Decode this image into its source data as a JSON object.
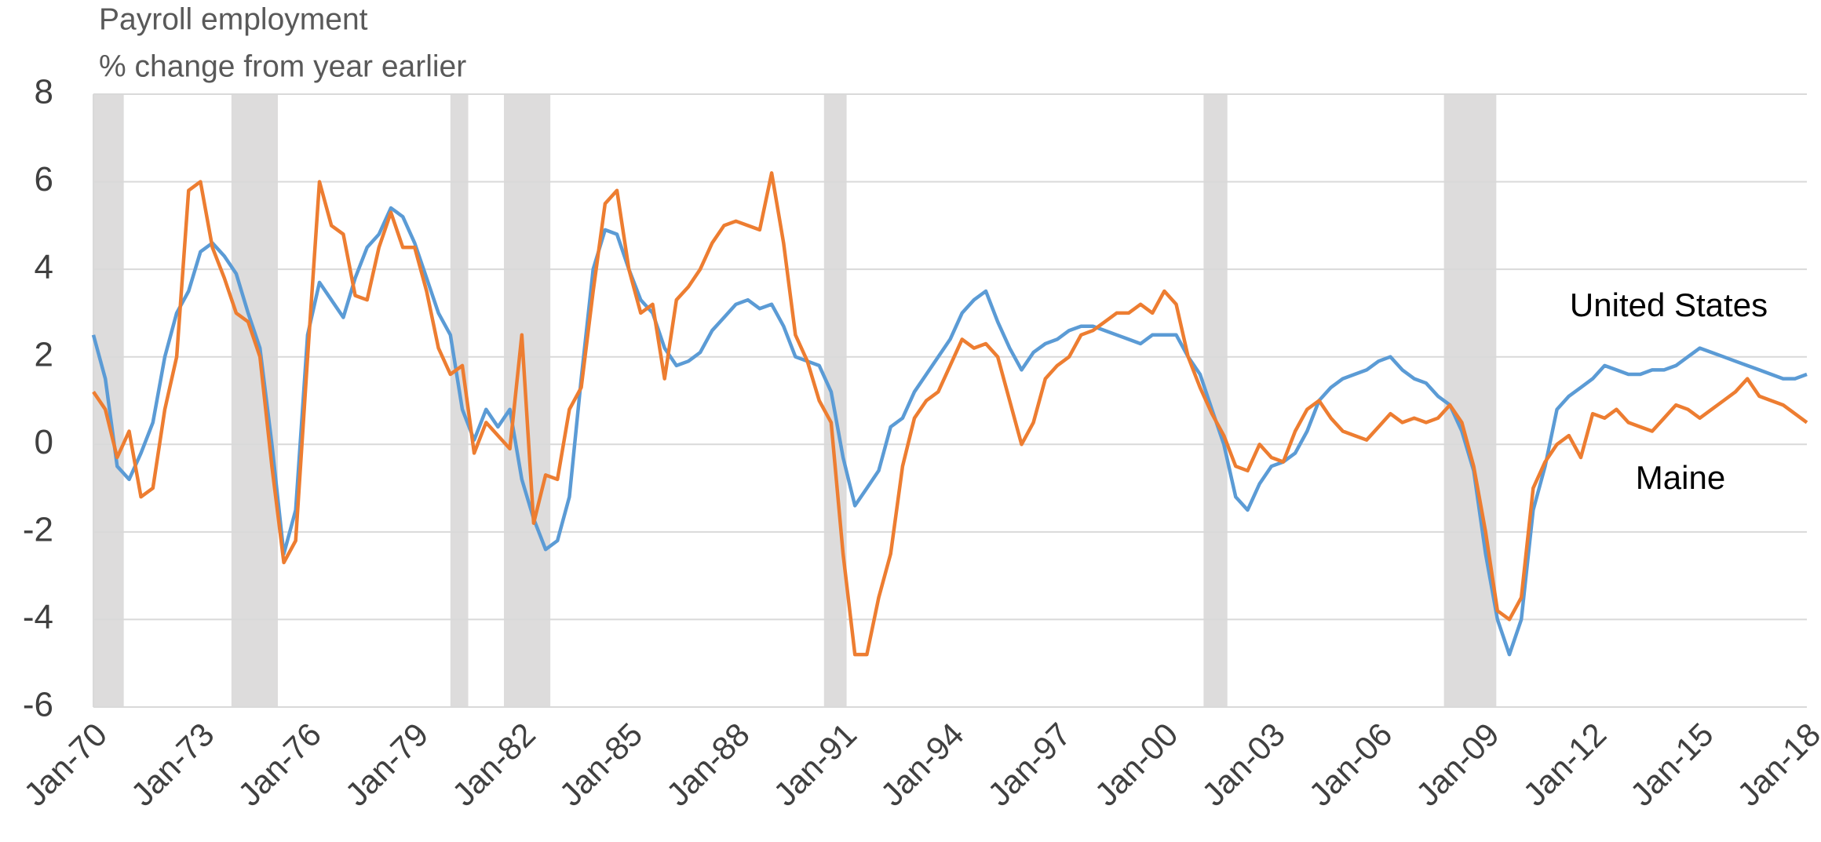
{
  "chart_data": {
    "type": "line",
    "title": "Payroll employment",
    "y_label": "% change from year earlier",
    "categories": [
      "Jan-70",
      null,
      null,
      null,
      null,
      null,
      null,
      null,
      null,
      "Jan-73",
      null,
      null,
      null,
      null,
      null,
      null,
      null,
      null,
      "Jan-76",
      null,
      null,
      null,
      null,
      null,
      null,
      null,
      null,
      "Jan-79",
      null,
      null,
      null,
      null,
      null,
      null,
      null,
      null,
      "Jan-82",
      null,
      null,
      null,
      null,
      null,
      null,
      null,
      null,
      "Jan-85",
      null,
      null,
      null,
      null,
      null,
      null,
      null,
      null,
      "Jan-88",
      null,
      null,
      null,
      null,
      null,
      null,
      null,
      null,
      "Jan-91",
      null,
      null,
      null,
      null,
      null,
      null,
      null,
      null,
      "Jan-94",
      null,
      null,
      null,
      null,
      null,
      null,
      null,
      null,
      "Jan-97",
      null,
      null,
      null,
      null,
      null,
      null,
      null,
      null,
      "Jan-00",
      null,
      null,
      null,
      null,
      null,
      null,
      null,
      null,
      "Jan-03",
      null,
      null,
      null,
      null,
      null,
      null,
      null,
      null,
      "Jan-06",
      null,
      null,
      null,
      null,
      null,
      null,
      null,
      null,
      "Jan-09",
      null,
      null,
      null,
      null,
      null,
      null,
      null,
      null,
      "Jan-12",
      null,
      null,
      null,
      null,
      null,
      null,
      null,
      null,
      "Jan-15",
      null,
      null,
      null,
      null,
      null,
      null,
      null,
      null,
      "Jan-18"
    ],
    "series": [
      {
        "name": "United States",
        "color": "#5b9bd5",
        "values": [
          2.5,
          1.5,
          -0.5,
          -0.8,
          -0.2,
          0.5,
          2.0,
          3.0,
          3.5,
          4.4,
          4.6,
          4.3,
          3.9,
          3.0,
          2.2,
          0.0,
          -2.5,
          -1.5,
          2.5,
          3.7,
          3.3,
          2.9,
          3.8,
          4.5,
          4.8,
          5.4,
          5.2,
          4.6,
          3.8,
          3.0,
          2.5,
          0.8,
          0.1,
          0.8,
          0.4,
          0.8,
          -0.8,
          -1.7,
          -2.4,
          -2.2,
          -1.2,
          1.5,
          4.0,
          4.9,
          4.8,
          4.0,
          3.3,
          3.0,
          2.2,
          1.8,
          1.9,
          2.1,
          2.6,
          2.9,
          3.2,
          3.3,
          3.1,
          3.2,
          2.7,
          2.0,
          1.9,
          1.8,
          1.2,
          -0.3,
          -1.4,
          -1.0,
          -0.6,
          0.4,
          0.6,
          1.2,
          1.6,
          2.0,
          2.4,
          3.0,
          3.3,
          3.5,
          2.8,
          2.2,
          1.7,
          2.1,
          2.3,
          2.4,
          2.6,
          2.7,
          2.7,
          2.6,
          2.5,
          2.4,
          2.3,
          2.5,
          2.5,
          2.5,
          2.0,
          1.6,
          0.8,
          0.0,
          -1.2,
          -1.5,
          -0.9,
          -0.5,
          -0.4,
          -0.2,
          0.3,
          1.0,
          1.3,
          1.5,
          1.6,
          1.7,
          1.9,
          2.0,
          1.7,
          1.5,
          1.4,
          1.1,
          0.9,
          0.3,
          -0.6,
          -2.5,
          -4.0,
          -4.8,
          -4.0,
          -1.5,
          -0.5,
          0.8,
          1.1,
          1.3,
          1.5,
          1.8,
          1.7,
          1.6,
          1.6,
          1.7,
          1.7,
          1.8,
          2.0,
          2.2,
          2.1,
          2.0,
          1.9,
          1.8,
          1.7,
          1.6,
          1.5,
          1.5,
          1.6
        ]
      },
      {
        "name": "Maine",
        "color": "#ed7d31",
        "values": [
          1.2,
          0.8,
          -0.3,
          0.3,
          -1.2,
          -1.0,
          0.8,
          2.0,
          5.8,
          6.0,
          4.5,
          3.8,
          3.0,
          2.8,
          2.0,
          -0.5,
          -2.7,
          -2.2,
          2.0,
          6.0,
          5.0,
          4.8,
          3.4,
          3.3,
          4.5,
          5.3,
          4.5,
          4.5,
          3.5,
          2.2,
          1.6,
          1.8,
          -0.2,
          0.5,
          0.2,
          -0.1,
          2.5,
          -1.8,
          -0.7,
          -0.8,
          0.8,
          1.3,
          3.5,
          5.5,
          5.8,
          4.0,
          3.0,
          3.2,
          1.5,
          3.3,
          3.6,
          4.0,
          4.6,
          5.0,
          5.1,
          5.0,
          4.9,
          6.2,
          4.6,
          2.5,
          1.9,
          1.0,
          0.5,
          -2.5,
          -4.8,
          -4.8,
          -3.5,
          -2.5,
          -0.5,
          0.6,
          1.0,
          1.2,
          1.8,
          2.4,
          2.2,
          2.3,
          2.0,
          1.0,
          0.0,
          0.5,
          1.5,
          1.8,
          2.0,
          2.5,
          2.6,
          2.8,
          3.0,
          3.0,
          3.2,
          3.0,
          3.5,
          3.2,
          2.0,
          1.3,
          0.7,
          0.2,
          -0.5,
          -0.6,
          0.0,
          -0.3,
          -0.4,
          0.3,
          0.8,
          1.0,
          0.6,
          0.3,
          0.2,
          0.1,
          0.4,
          0.7,
          0.5,
          0.6,
          0.5,
          0.6,
          0.9,
          0.5,
          -0.5,
          -2.0,
          -3.8,
          -4.0,
          -3.5,
          -1.0,
          -0.4,
          0.0,
          0.2,
          -0.3,
          0.7,
          0.6,
          0.8,
          0.5,
          0.4,
          0.3,
          0.6,
          0.9,
          0.8,
          0.6,
          0.8,
          1.0,
          1.2,
          1.5,
          1.1,
          1.0,
          0.9,
          0.7,
          0.5
        ]
      }
    ],
    "shaded_ranges": [
      [
        0,
        2.55
      ],
      [
        11.6,
        15.5
      ],
      [
        30,
        31.5
      ],
      [
        34.5,
        38.4
      ],
      [
        61.4,
        63.3
      ],
      [
        93.3,
        95.3
      ],
      [
        113.5,
        117.9
      ]
    ],
    "shade_color": "#dddcdc",
    "ylim": [
      -6,
      8
    ],
    "yticks": [
      -6,
      -4,
      -2,
      0,
      2,
      4,
      6,
      8
    ],
    "grid": true
  }
}
